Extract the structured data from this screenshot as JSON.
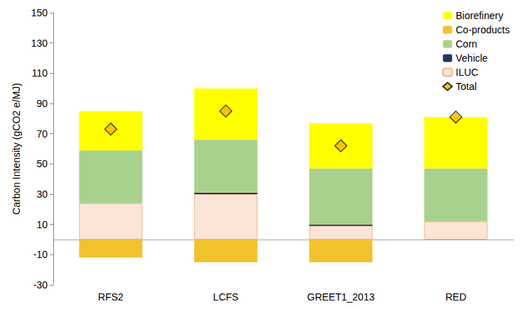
{
  "chart_data": {
    "type": "bar",
    "stacked": true,
    "grid": false,
    "legend": "upper right",
    "y_label": "Carbon Intensity (gCO2 e/MJ)",
    "categories": [
      "RFS2",
      "LCFS",
      "GREET1_2013",
      "RED"
    ],
    "ylim": [
      -30,
      150
    ],
    "yticks": [
      -30,
      -10,
      10,
      30,
      50,
      70,
      90,
      110,
      130,
      150
    ],
    "series": [
      {
        "name": "Biorefinery",
        "type": "bar",
        "color": "#ffff00",
        "values": [
          26,
          34,
          30,
          34
        ]
      },
      {
        "name": "Co-products",
        "type": "bar",
        "color": "#f2c12e",
        "values": [
          -12,
          -15,
          -15,
          0
        ]
      },
      {
        "name": "Corn",
        "type": "bar",
        "color": "#a9d18e",
        "values": [
          35,
          35,
          37,
          35
        ]
      },
      {
        "name": "Vehicle",
        "type": "bar",
        "color": "#1f3864",
        "values": [
          0,
          1,
          1,
          0
        ]
      },
      {
        "name": "ILUC",
        "type": "bar",
        "color": "#fbe5d6",
        "values": [
          24,
          30,
          9,
          12
        ]
      },
      {
        "name": "Total",
        "type": "scatter",
        "marker": "diamond",
        "color": "#f5b800",
        "values": [
          73,
          85,
          62,
          81
        ]
      }
    ]
  }
}
